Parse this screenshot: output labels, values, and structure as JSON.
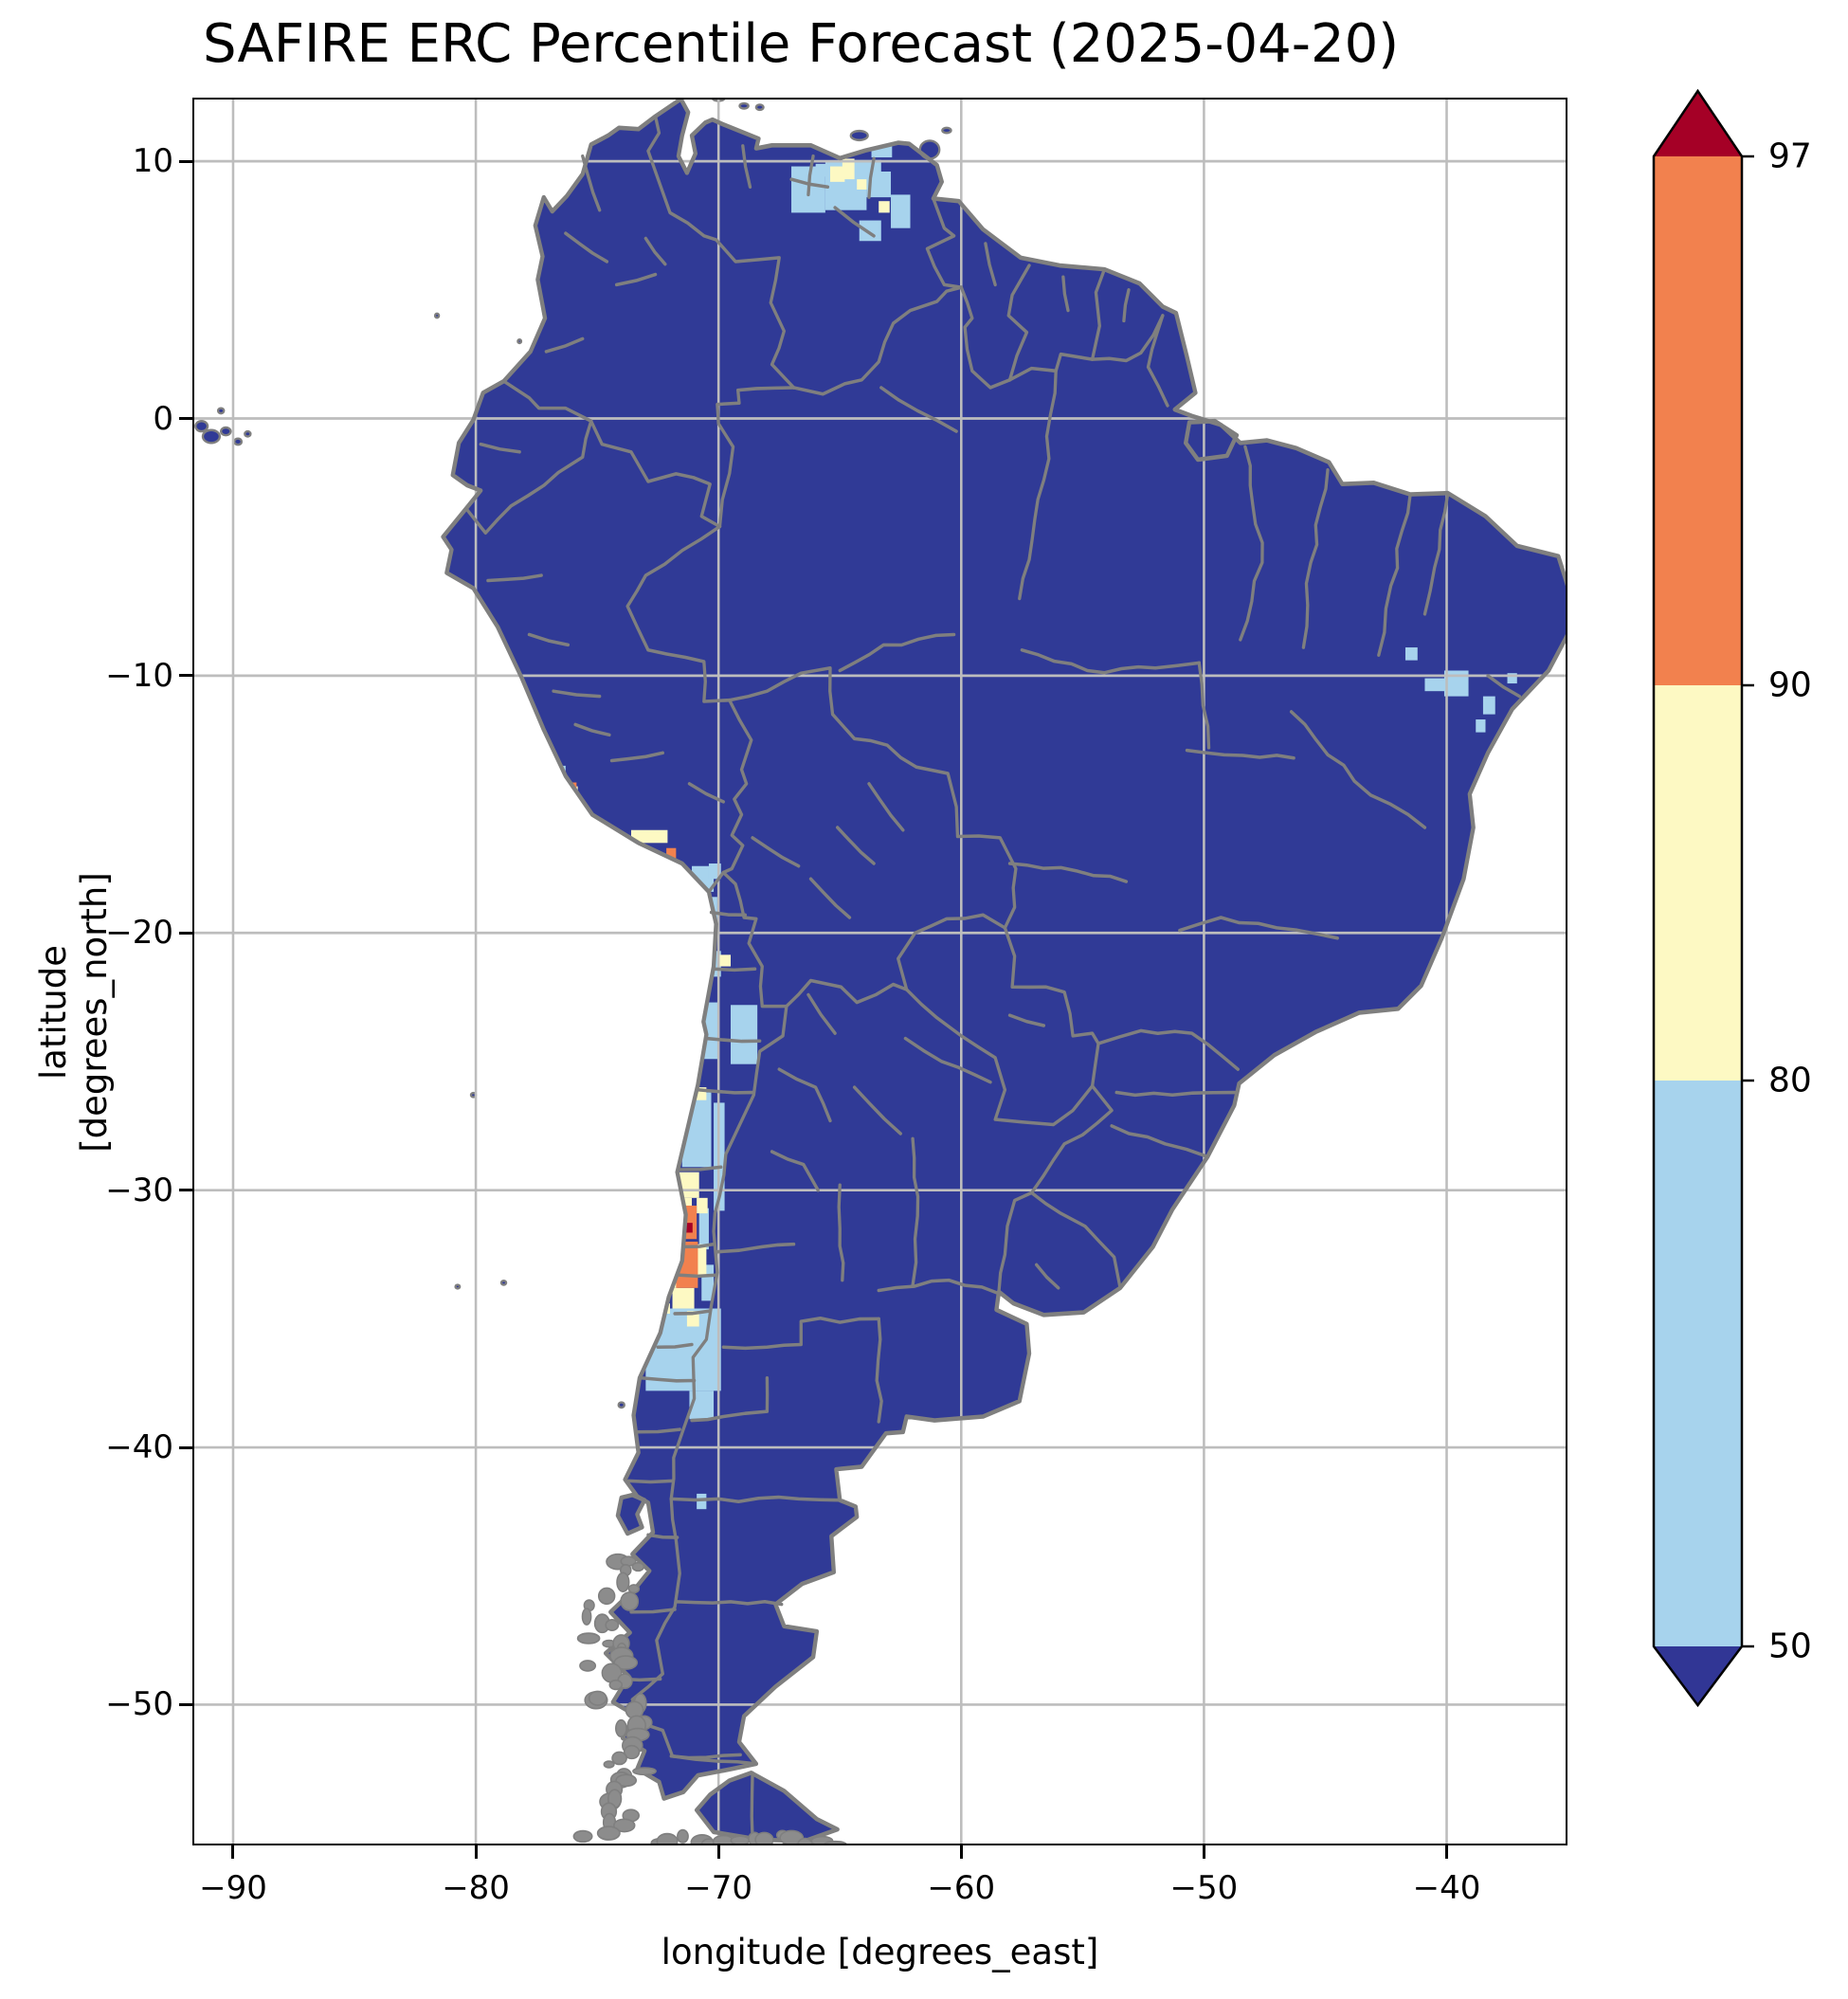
{
  "title": "SAFIRE ERC Percentile Forecast (2025-04-20)",
  "axes": {
    "xlabel": "longitude [degrees_east]",
    "ylabel": "latitude [degrees_north]",
    "x_ticks": [
      {
        "value": -90,
        "label": "−90"
      },
      {
        "value": -80,
        "label": "−80"
      },
      {
        "value": -70,
        "label": "−70"
      },
      {
        "value": -60,
        "label": "−60"
      },
      {
        "value": -50,
        "label": "−50"
      },
      {
        "value": -40,
        "label": "−40"
      }
    ],
    "y_ticks": [
      {
        "value": 10,
        "label": "10"
      },
      {
        "value": 0,
        "label": "0"
      },
      {
        "value": -10,
        "label": "−10"
      },
      {
        "value": -20,
        "label": "−20"
      },
      {
        "value": -30,
        "label": "−30"
      },
      {
        "value": -40,
        "label": "−40"
      },
      {
        "value": -50,
        "label": "−50"
      }
    ],
    "lon_range": [
      -91.6,
      -35.1
    ],
    "lat_range": [
      -55.4,
      12.4
    ]
  },
  "colorbar": {
    "ticks": [
      {
        "value": 97,
        "label": "97"
      },
      {
        "value": 90,
        "label": "90"
      },
      {
        "value": 80,
        "label": "80"
      },
      {
        "value": 50,
        "label": "50"
      }
    ],
    "levels": [
      50,
      80,
      90,
      97
    ],
    "colors": {
      "under_50": "#313695",
      "p50_80": "#a7d3ed",
      "p80_90": "#fdf9c3",
      "p90_97": "#f2814e",
      "over_97": "#a50026"
    },
    "outline_color": "#000000"
  },
  "map": {
    "land_color": "#303a96",
    "ocean_color": "#ffffff",
    "border_color": "#7f7f7f",
    "gridline_color": "#bdbdbd",
    "island_fill": "#8c8c8c",
    "cells": {
      "p50_80": [
        [
          -67.0,
          8.0,
          1.4,
          1.8
        ],
        [
          -65.6,
          8.1,
          1.7,
          1.9
        ],
        [
          -66.0,
          9.4,
          0.6,
          0.5
        ],
        [
          -64.4,
          9.3,
          1.1,
          0.75
        ],
        [
          -63.9,
          8.6,
          1.0,
          1.0
        ],
        [
          -63.7,
          10.15,
          0.85,
          0.55
        ],
        [
          -62.9,
          7.4,
          0.8,
          1.3
        ],
        [
          -64.2,
          6.9,
          0.9,
          0.8
        ],
        [
          -41.7,
          -9.4,
          0.5,
          0.5
        ],
        [
          -40.9,
          -10.6,
          0.9,
          0.5
        ],
        [
          -40.1,
          -10.8,
          1.0,
          1.0
        ],
        [
          -38.5,
          -11.5,
          0.5,
          0.7
        ],
        [
          -38.8,
          -12.2,
          0.4,
          0.5
        ],
        [
          -37.5,
          -10.3,
          0.4,
          0.4
        ],
        [
          -76.9,
          -14.2,
          0.6,
          0.7
        ],
        [
          -76.4,
          -15.4,
          0.5,
          0.9
        ],
        [
          -71.1,
          -18.4,
          0.9,
          1.0
        ],
        [
          -70.4,
          -17.9,
          0.5,
          0.6
        ],
        [
          -70.5,
          -19.6,
          0.45,
          1.0
        ],
        [
          -70.4,
          -21.7,
          0.5,
          1.0
        ],
        [
          -70.6,
          -24.9,
          0.6,
          2.2
        ],
        [
          -69.5,
          -25.1,
          1.1,
          2.3
        ],
        [
          -70.2,
          -30.8,
          0.45,
          4.2
        ],
        [
          -71.5,
          -29.1,
          1.2,
          2.9
        ],
        [
          -70.8,
          -32.3,
          0.4,
          1.6
        ],
        [
          -70.7,
          -34.3,
          0.5,
          1.4
        ],
        [
          -73.0,
          -37.8,
          3.1,
          3.2
        ],
        [
          -71.2,
          -38.9,
          1.0,
          1.1
        ],
        [
          -70.9,
          -42.4,
          0.4,
          0.6
        ]
      ],
      "p80_90": [
        [
          -65.4,
          9.2,
          0.6,
          0.6
        ],
        [
          -64.9,
          9.3,
          0.5,
          0.8
        ],
        [
          -64.3,
          8.9,
          0.4,
          0.4
        ],
        [
          -63.4,
          8.0,
          0.45,
          0.45
        ],
        [
          -73.6,
          -16.5,
          1.5,
          0.5
        ],
        [
          -76.3,
          -14.8,
          0.5,
          0.5
        ],
        [
          -70.0,
          -21.3,
          0.5,
          0.45
        ],
        [
          -71.0,
          -26.5,
          0.5,
          0.5
        ],
        [
          -71.9,
          -30.3,
          1.1,
          1.0
        ],
        [
          -71.5,
          -31.0,
          0.4,
          0.7
        ],
        [
          -70.9,
          -30.9,
          0.45,
          0.6
        ],
        [
          -72.1,
          -33.8,
          0.4,
          1.8
        ],
        [
          -70.9,
          -33.3,
          0.4,
          1.2
        ],
        [
          -71.9,
          -34.6,
          0.9,
          0.8
        ],
        [
          -72.5,
          -34.8,
          0.5,
          0.4
        ],
        [
          -71.3,
          -35.3,
          0.5,
          0.6
        ]
      ],
      "p90_97": [
        [
          -76.3,
          -14.65,
          0.45,
          0.5
        ],
        [
          -72.15,
          -17.1,
          0.4,
          0.4
        ],
        [
          -72.0,
          -31.9,
          1.1,
          1.3
        ],
        [
          -71.75,
          -33.8,
          0.9,
          1.8
        ]
      ],
      "p97_plus": [
        [
          -71.45,
          -31.65,
          0.38,
          0.38
        ]
      ]
    }
  }
}
